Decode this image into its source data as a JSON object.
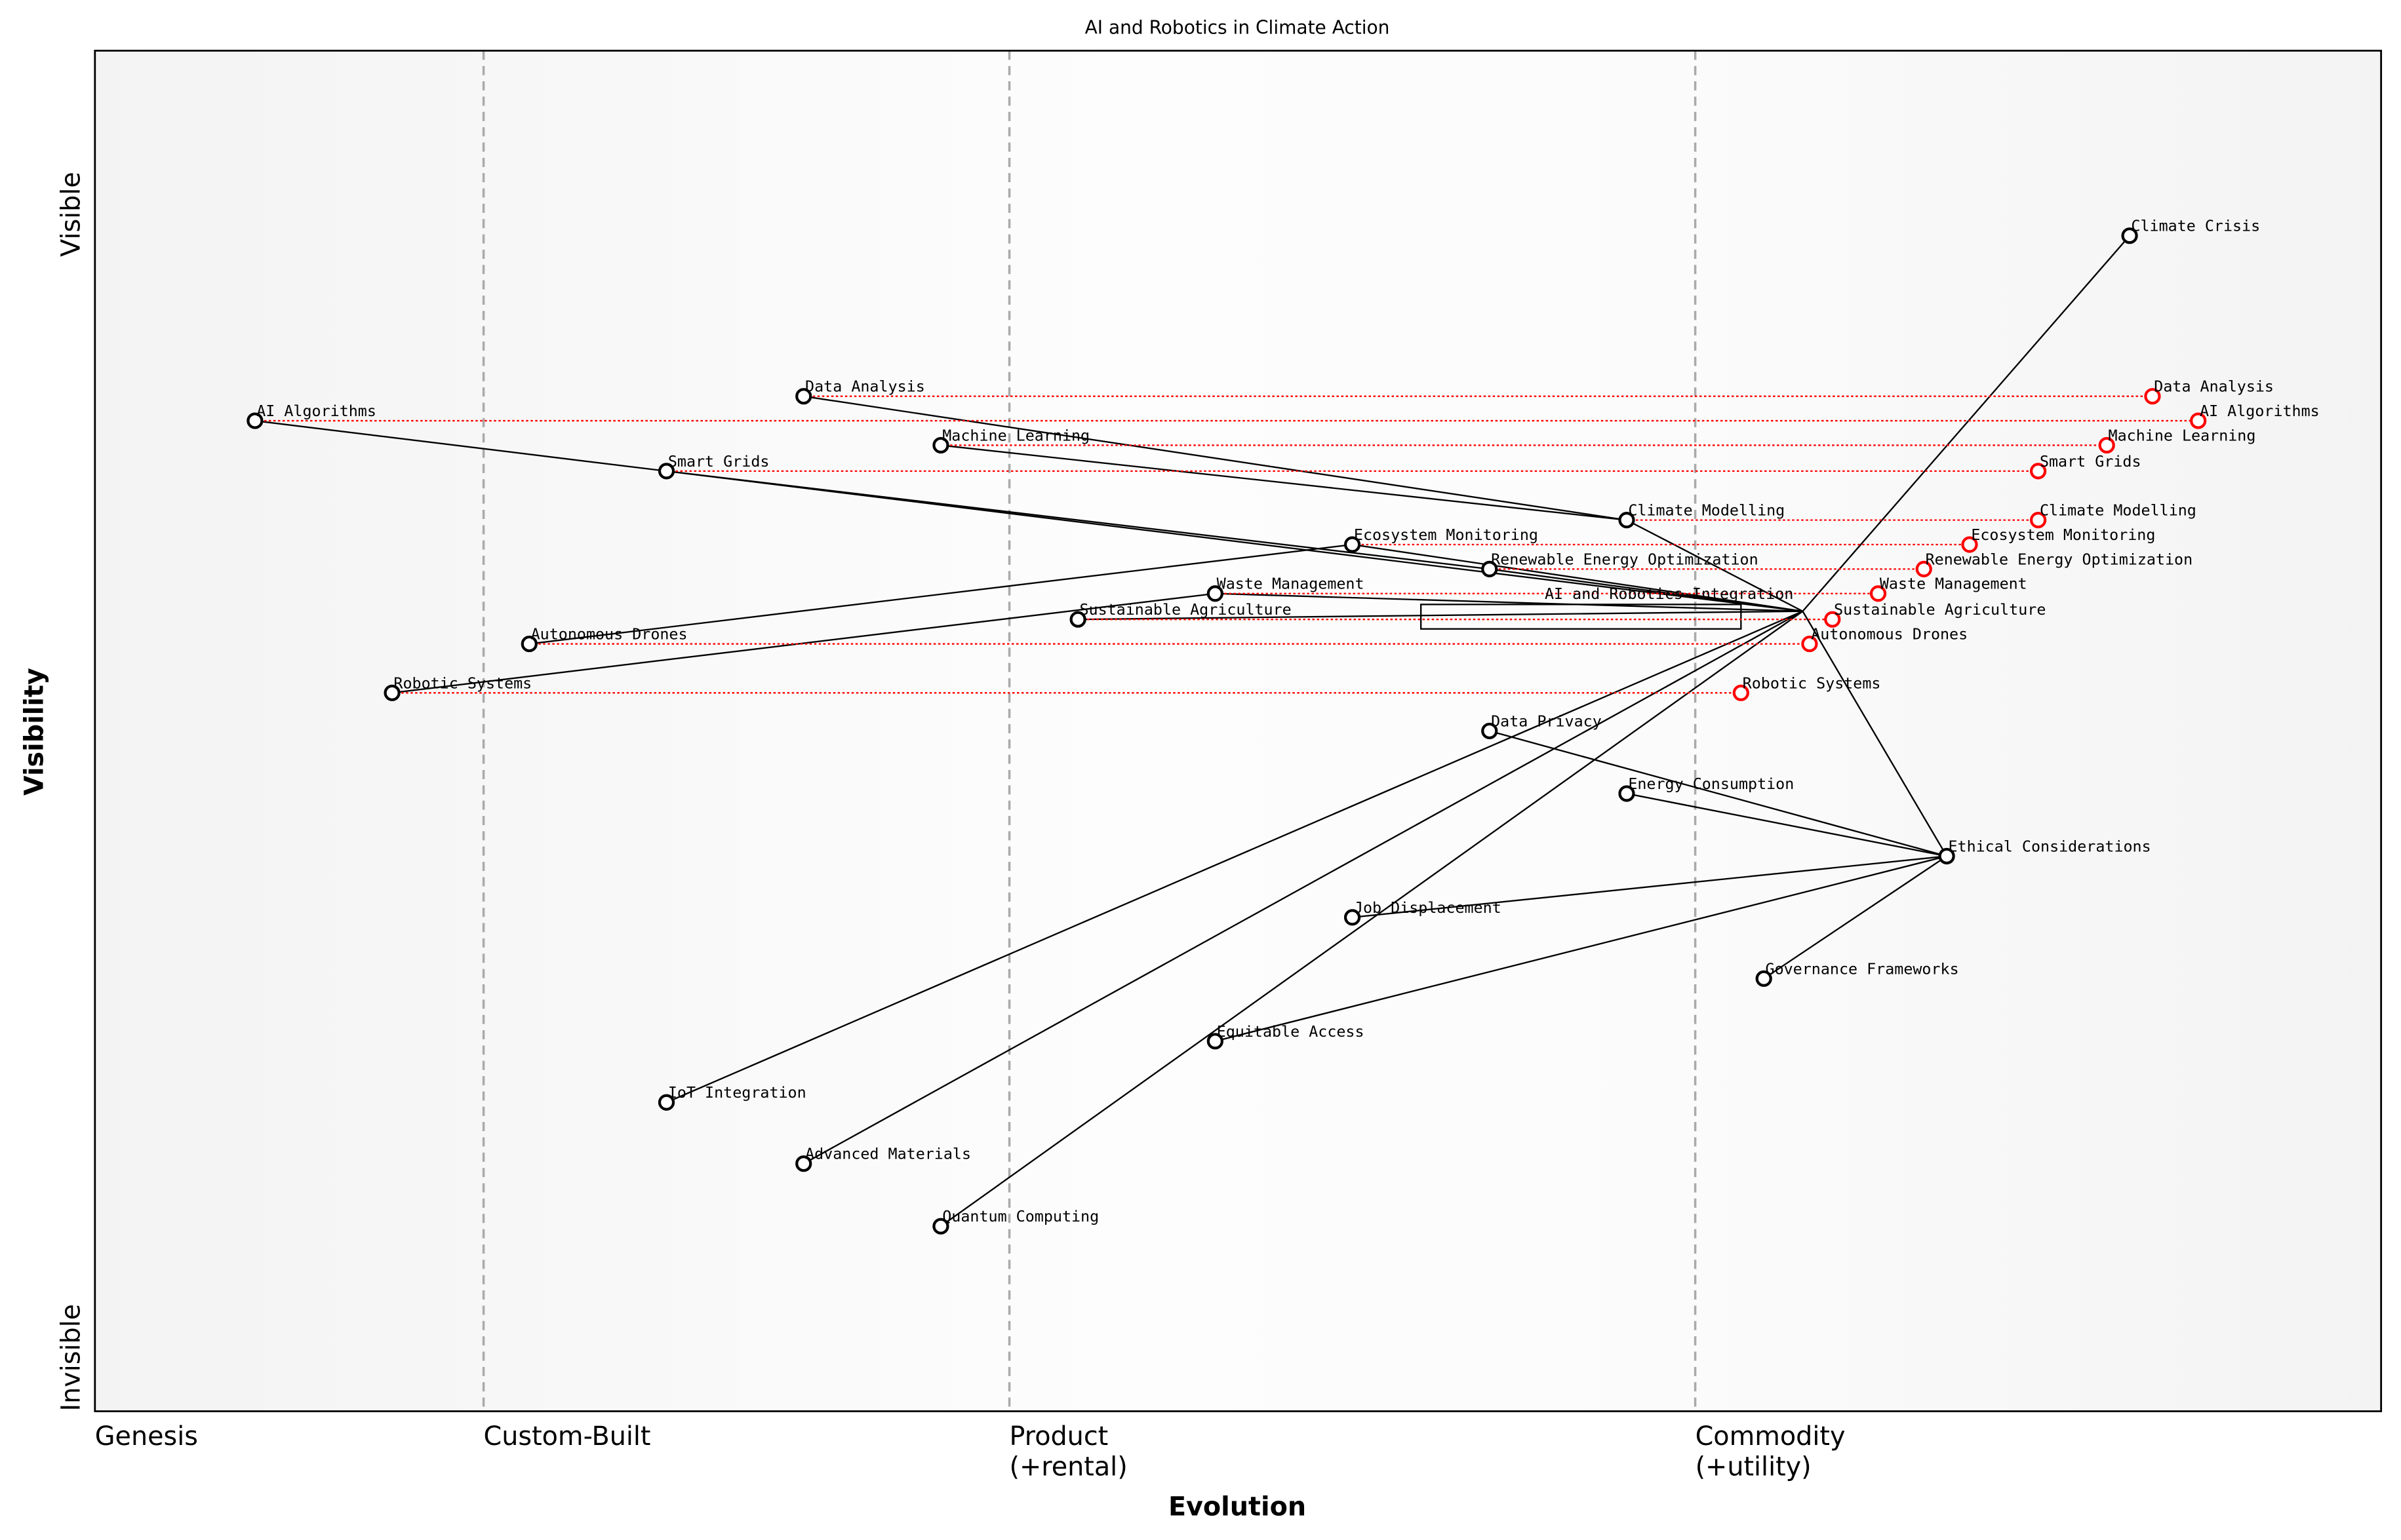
{
  "chart_data": {
    "type": "wardley-map",
    "title": "AI and Robotics in Climate Action",
    "xlabel": "Evolution",
    "ylabel": "Visibility",
    "xlim": [
      0,
      1
    ],
    "ylim": [
      0,
      1
    ],
    "y_ticks": [
      {
        "label": "Visible",
        "value": 0.9
      },
      {
        "label": "Invisible",
        "value": 0.0
      }
    ],
    "stages": [
      {
        "label": "Genesis",
        "value": 0.0
      },
      {
        "label": "Custom-Built",
        "value": 0.17
      },
      {
        "label": "Product\n(+rental)",
        "value": 0.4
      },
      {
        "label": "Commodity\n(+utility)",
        "value": 0.7
      }
    ],
    "components": [
      {
        "name": "Climate Crisis",
        "evolution": 0.89,
        "visibility": 0.864
      },
      {
        "name": "AI and Robotics Integration",
        "evolution": 0.747,
        "visibility": 0.588,
        "marker": false
      },
      {
        "name": "Data Analysis",
        "evolution": 0.31,
        "visibility": 0.746,
        "evolve_to": 0.9
      },
      {
        "name": "AI Algorithms",
        "evolution": 0.07,
        "visibility": 0.728,
        "evolve_to": 0.92
      },
      {
        "name": "Machine Learning",
        "evolution": 0.37,
        "visibility": 0.71,
        "evolve_to": 0.88
      },
      {
        "name": "Smart Grids",
        "evolution": 0.25,
        "visibility": 0.691,
        "evolve_to": 0.85
      },
      {
        "name": "Climate Modelling",
        "evolution": 0.67,
        "visibility": 0.655,
        "evolve_to": 0.85
      },
      {
        "name": "Ecosystem Monitoring",
        "evolution": 0.55,
        "visibility": 0.637,
        "evolve_to": 0.82
      },
      {
        "name": "Renewable Energy Optimization",
        "evolution": 0.61,
        "visibility": 0.619,
        "evolve_to": 0.8
      },
      {
        "name": "Waste Management",
        "evolution": 0.49,
        "visibility": 0.601,
        "evolve_to": 0.78
      },
      {
        "name": "Sustainable Agriculture",
        "evolution": 0.43,
        "visibility": 0.582,
        "evolve_to": 0.76
      },
      {
        "name": "Autonomous Drones",
        "evolution": 0.19,
        "visibility": 0.564,
        "evolve_to": 0.75
      },
      {
        "name": "Robotic Systems",
        "evolution": 0.13,
        "visibility": 0.528,
        "evolve_to": 0.72
      },
      {
        "name": "Data Privacy",
        "evolution": 0.61,
        "visibility": 0.5
      },
      {
        "name": "Energy Consumption",
        "evolution": 0.67,
        "visibility": 0.454
      },
      {
        "name": "Ethical Considerations",
        "evolution": 0.81,
        "visibility": 0.408
      },
      {
        "name": "Job Displacement",
        "evolution": 0.55,
        "visibility": 0.363
      },
      {
        "name": "Governance Frameworks",
        "evolution": 0.73,
        "visibility": 0.318
      },
      {
        "name": "Equitable Access",
        "evolution": 0.49,
        "visibility": 0.272
      },
      {
        "name": "IoT Integration",
        "evolution": 0.25,
        "visibility": 0.227
      },
      {
        "name": "Advanced Materials",
        "evolution": 0.31,
        "visibility": 0.182
      },
      {
        "name": "Quantum Computing",
        "evolution": 0.37,
        "visibility": 0.136
      }
    ],
    "links": [
      [
        "Climate Crisis",
        "AI and Robotics Integration"
      ],
      [
        "AI and Robotics Integration",
        "Climate Modelling"
      ],
      [
        "Climate Modelling",
        "Data Analysis"
      ],
      [
        "Climate Modelling",
        "Machine Learning"
      ],
      [
        "AI Algorithms",
        "Smart Grids"
      ],
      [
        "Smart Grids",
        "Renewable Energy Optimization"
      ],
      [
        "Smart Grids",
        "AI and Robotics Integration"
      ],
      [
        "Renewable Energy Optimization",
        "AI and Robotics Integration"
      ],
      [
        "Autonomous Drones",
        "Ecosystem Monitoring"
      ],
      [
        "Ecosystem Monitoring",
        "AI and Robotics Integration"
      ],
      [
        "Robotic Systems",
        "Waste Management"
      ],
      [
        "Waste Management",
        "AI and Robotics Integration"
      ],
      [
        "Sustainable Agriculture",
        "AI and Robotics Integration"
      ],
      [
        "AI and Robotics Integration",
        "Ethical Considerations"
      ],
      [
        "Data Privacy",
        "Ethical Considerations"
      ],
      [
        "Energy Consumption",
        "Ethical Considerations"
      ],
      [
        "Job Displacement",
        "Ethical Considerations"
      ],
      [
        "Equitable Access",
        "Ethical Considerations"
      ],
      [
        "Governance Frameworks",
        "Ethical Considerations"
      ],
      [
        "IoT Integration",
        "AI and Robotics Integration"
      ],
      [
        "Advanced Materials",
        "AI and Robotics Integration"
      ],
      [
        "Quantum Computing",
        "AI and Robotics Integration"
      ]
    ],
    "annotation_box": {
      "evolution": [
        0.58,
        0.72
      ],
      "visibility": [
        0.575,
        0.593
      ]
    },
    "colors": {
      "component": "#000000",
      "evolved": "#ff0000",
      "stage_line": "#aaaaaa"
    }
  }
}
